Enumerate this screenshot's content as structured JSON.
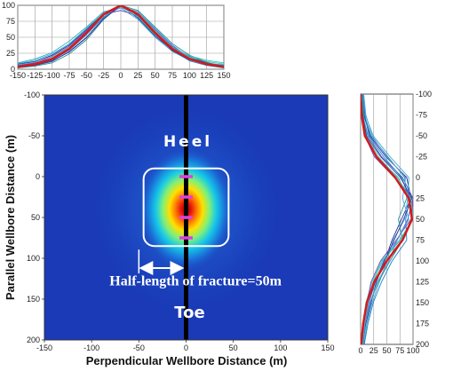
{
  "chart_data": [
    {
      "id": "top-profile",
      "type": "line",
      "title": "",
      "xlabel": "",
      "ylabel": "",
      "xlim": [
        -150,
        150
      ],
      "ylim": [
        0,
        100
      ],
      "x_ticks": [
        -150,
        -125,
        -100,
        -75,
        -50,
        -25,
        0,
        25,
        50,
        75,
        100,
        125,
        150
      ],
      "y_ticks": [
        0,
        25,
        50,
        75,
        100
      ],
      "x_tick_labels": [
        "-150",
        "-125",
        "-100",
        "-75",
        "-50",
        "-25",
        "0",
        "25",
        "50",
        "75",
        "100",
        "125",
        "150"
      ],
      "y_tick_labels": [
        "0",
        "25",
        "50",
        "75",
        "100"
      ],
      "grid": true,
      "series": [
        {
          "role": "mean",
          "color": "#d41a1a",
          "x": [
            -150,
            -125,
            -100,
            -75,
            -50,
            -25,
            0,
            25,
            50,
            75,
            100,
            125,
            150
          ],
          "values": [
            4,
            8,
            16,
            32,
            57,
            86,
            100,
            86,
            57,
            32,
            16,
            8,
            4
          ]
        },
        {
          "role": "individual",
          "colors": [
            "#1b2a9e",
            "#2f5fc4",
            "#3aa6c9",
            "#47c9a3",
            "#2c8f8f",
            "#6a4bbf",
            "#1f7fd0",
            "#30c0c0",
            "#5aa0e0",
            "#3d3d99"
          ],
          "x": [
            -150,
            -125,
            -100,
            -75,
            -50,
            -25,
            0,
            25,
            50,
            75,
            100,
            125,
            150
          ],
          "values": [
            [
              8,
              12,
              22,
              38,
              62,
              88,
              100,
              80,
              52,
              30,
              18,
              10,
              5
            ],
            [
              3,
              6,
              12,
              28,
              50,
              80,
              98,
              90,
              62,
              36,
              20,
              10,
              6
            ],
            [
              10,
              16,
              26,
              44,
              66,
              90,
              96,
              78,
              50,
              28,
              14,
              9,
              7
            ],
            [
              5,
              9,
              18,
              34,
              58,
              84,
              100,
              88,
              60,
              34,
              19,
              12,
              8
            ],
            [
              2,
              5,
              10,
              24,
              46,
              78,
              100,
              92,
              66,
              40,
              22,
              11,
              4
            ],
            [
              6,
              10,
              20,
              36,
              60,
              86,
              92,
              84,
              56,
              32,
              16,
              9,
              3
            ],
            [
              4,
              7,
              14,
              30,
              54,
              82,
              100,
              86,
              58,
              30,
              13,
              6,
              2
            ],
            [
              9,
              14,
              24,
              40,
              64,
              88,
              98,
              82,
              54,
              34,
              21,
              14,
              10
            ],
            [
              7,
              11,
              17,
              31,
              55,
              85,
              96,
              90,
              64,
              38,
              18,
              8,
              5
            ],
            [
              3,
              6,
              13,
              27,
              49,
              79,
              100,
              84,
              55,
              29,
              15,
              7,
              3
            ]
          ]
        }
      ]
    },
    {
      "id": "main-heatmap",
      "type": "heatmap",
      "title": "",
      "xlabel": "Perpendicular Wellbore Distance (m)",
      "ylabel": "Parallel Wellbore Distance (m)",
      "xlim": [
        -150,
        150
      ],
      "ylim": [
        -100,
        200
      ],
      "y_inverted": true,
      "x_ticks": [
        -150,
        -100,
        -50,
        0,
        50,
        100,
        150
      ],
      "y_ticks": [
        -100,
        -50,
        0,
        50,
        100,
        150,
        200
      ],
      "x_tick_labels": [
        "-150",
        "-100",
        "-50",
        "0",
        "50",
        "100",
        "150"
      ],
      "y_tick_labels": [
        "-100",
        "-50",
        "0",
        "50",
        "100",
        "150",
        "200"
      ],
      "colormap": "jet",
      "peak": {
        "x": 0,
        "y": 40
      },
      "wellbore_x": 0,
      "fracture_box": {
        "x_range": [
          -45,
          45
        ],
        "y_range": [
          -10,
          85
        ]
      },
      "fracture_markers_y": [
        0,
        25,
        50,
        75
      ],
      "half_length_arrow": {
        "x_range": [
          -50,
          0
        ],
        "y": 112
      },
      "annotations": {
        "heel": "Heel",
        "toe": "Toe",
        "half_length": "Half-length of fracture=50m"
      }
    },
    {
      "id": "side-profile",
      "type": "line",
      "orientation": "vertical",
      "title": "",
      "xlabel": "",
      "ylabel": "",
      "xlim": [
        0,
        100
      ],
      "ylim": [
        -100,
        200
      ],
      "y_inverted": true,
      "x_ticks": [
        0,
        25,
        50,
        75,
        100
      ],
      "y_ticks": [
        -100,
        -75,
        -50,
        -25,
        0,
        25,
        50,
        75,
        100,
        125,
        150,
        175,
        200
      ],
      "x_tick_labels": [
        "0",
        "25",
        "50",
        "75",
        "100"
      ],
      "y_tick_labels": [
        "-100",
        "-75",
        "-50",
        "-25",
        "0",
        "25",
        "50",
        "75",
        "100",
        "125",
        "150",
        "175",
        "200"
      ],
      "grid": true,
      "series": [
        {
          "role": "mean",
          "color": "#d41a1a",
          "y": [
            -100,
            -75,
            -50,
            -25,
            0,
            25,
            50,
            75,
            100,
            125,
            150,
            175,
            200
          ],
          "values": [
            0,
            2,
            8,
            30,
            66,
            92,
            98,
            80,
            50,
            26,
            12,
            5,
            1
          ]
        },
        {
          "role": "individual",
          "colors": [
            "#1b2a9e",
            "#2f5fc4",
            "#3aa6c9",
            "#47c9a3",
            "#2c8f8f",
            "#6a4bbf",
            "#1f7fd0",
            "#30c0c0",
            "#5aa0e0",
            "#3d3d99"
          ],
          "y": [
            -100,
            -75,
            -50,
            -25,
            0,
            25,
            50,
            75,
            100,
            125,
            150,
            175,
            200
          ],
          "values": [
            [
              2,
              6,
              18,
              48,
              88,
              96,
              78,
              60,
              46,
              30,
              20,
              10,
              4
            ],
            [
              0,
              4,
              14,
              40,
              80,
              100,
              90,
              70,
              44,
              28,
              16,
              8,
              3
            ],
            [
              5,
              9,
              24,
              56,
              92,
              90,
              84,
              62,
              50,
              36,
              22,
              12,
              6
            ],
            [
              1,
              3,
              10,
              34,
              70,
              96,
              100,
              74,
              40,
              22,
              10,
              4,
              1
            ],
            [
              3,
              7,
              20,
              52,
              84,
              88,
              72,
              80,
              56,
              34,
              18,
              9,
              5
            ],
            [
              0,
              2,
              8,
              26,
              64,
              100,
              96,
              68,
              38,
              20,
              12,
              6,
              2
            ],
            [
              4,
              8,
              16,
              44,
              78,
              94,
              86,
              88,
              60,
              40,
              24,
              14,
              7
            ],
            [
              2,
              5,
              12,
              30,
              72,
              90,
              100,
              76,
              42,
              24,
              14,
              6,
              2
            ],
            [
              6,
              10,
              22,
              50,
              86,
              80,
              92,
              70,
              54,
              32,
              18,
              8,
              4
            ],
            [
              1,
              4,
              11,
              38,
              76,
              98,
              82,
              64,
              46,
              28,
              13,
              5,
              1
            ]
          ]
        }
      ]
    }
  ]
}
